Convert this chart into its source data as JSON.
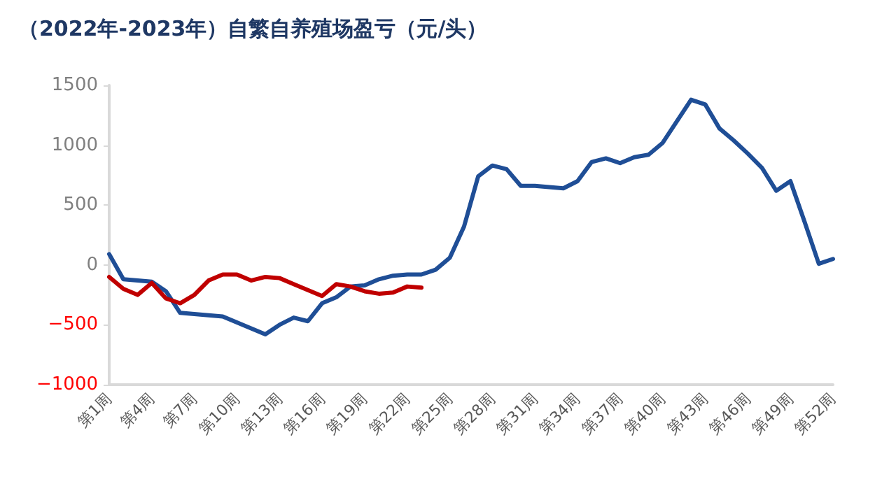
{
  "chart_data": {
    "type": "line",
    "title": "（2022年-2023年）自繁自养殖场盈亏（元/头）",
    "categories": [
      "第1周",
      null,
      null,
      "第4周",
      null,
      null,
      "第7周",
      null,
      null,
      "第10周",
      null,
      null,
      "第13周",
      null,
      null,
      "第16周",
      null,
      null,
      "第19周",
      null,
      null,
      "第22周",
      null,
      null,
      "第25周",
      null,
      null,
      "第28周",
      null,
      null,
      "第31周",
      null,
      null,
      "第34周",
      null,
      null,
      "第37周",
      null,
      null,
      "第40周",
      null,
      null,
      "第43周",
      null,
      null,
      "第46周",
      null,
      null,
      "第49周",
      null,
      null,
      "第52周"
    ],
    "series": [
      {
        "color": "#1f4e96",
        "values": [
          90,
          -120,
          -130,
          -140,
          -220,
          -400,
          -410,
          -420,
          -430,
          -480,
          -530,
          -580,
          -500,
          -440,
          -470,
          -320,
          -270,
          -180,
          -170,
          -120,
          -90,
          -80,
          -80,
          -40,
          60,
          320,
          740,
          830,
          800,
          660,
          660,
          650,
          640,
          700,
          860,
          890,
          850,
          900,
          920,
          1020,
          1200,
          1380,
          1340,
          1140,
          1040,
          930,
          810,
          620,
          700,
          360,
          10,
          50
        ]
      },
      {
        "color": "#c00000",
        "values": [
          -100,
          -200,
          -250,
          -150,
          -280,
          -320,
          -250,
          -130,
          -80,
          -80,
          -130,
          -100,
          -110,
          -160,
          -210,
          -260,
          -160,
          -180,
          -220,
          -240,
          -230,
          -180,
          -190,
          null,
          null,
          null,
          null,
          null,
          null,
          null,
          null,
          null,
          null,
          null,
          null,
          null,
          null,
          null,
          null,
          null,
          null,
          null,
          null,
          null,
          null,
          null,
          null,
          null,
          null,
          null,
          null,
          null
        ]
      }
    ],
    "ylim": [
      -1000,
      1500
    ],
    "yticks": [
      -1000,
      -500,
      0,
      500,
      1000,
      1500
    ],
    "grid": false,
    "marker": "none",
    "line_style": "solid"
  }
}
